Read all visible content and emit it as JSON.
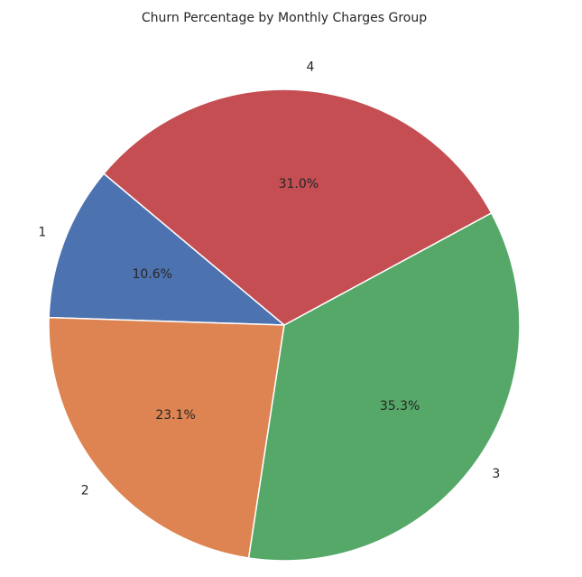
{
  "chart_data": {
    "type": "pie",
    "title": "Churn Percentage by Monthly Charges Group",
    "categories": [
      "1",
      "2",
      "3",
      "4"
    ],
    "values": [
      10.6,
      23.1,
      35.3,
      31.0
    ],
    "value_labels": [
      "10.6%",
      "23.1%",
      "35.3%",
      "31.0%"
    ],
    "colors": [
      "#4c72b0",
      "#dd8452",
      "#55a868",
      "#c44e52"
    ],
    "start_angle": 140
  }
}
